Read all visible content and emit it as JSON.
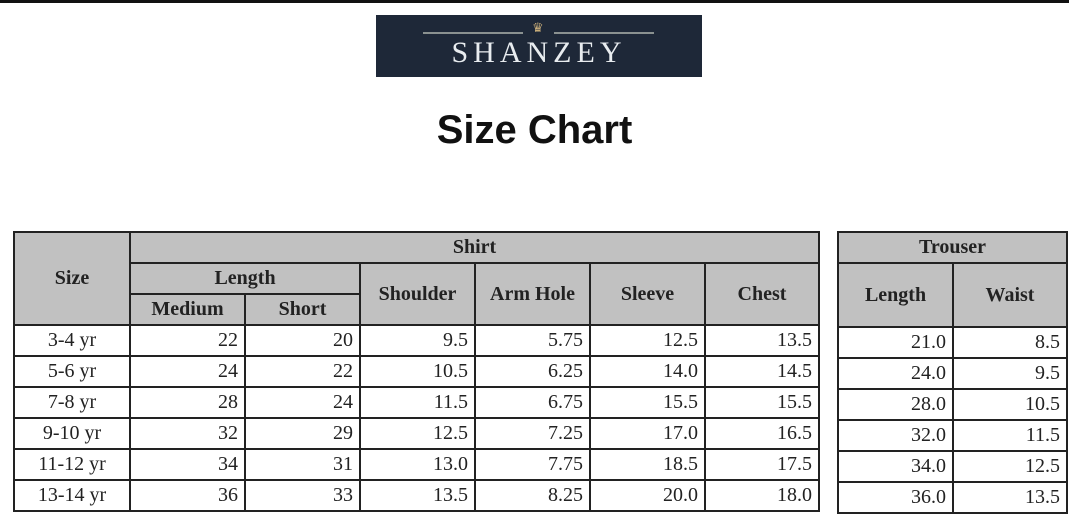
{
  "logo": {
    "text": "SHANZEY",
    "crown_icon": "crown-icon",
    "background": "#1e2838"
  },
  "title": "Size Chart",
  "shirt": {
    "group": "Shirt",
    "size_header": "Size",
    "length_header": "Length",
    "sub": [
      "Medium",
      "Short"
    ],
    "cols": [
      "Shoulder",
      "Arm Hole",
      "Sleeve",
      "Chest"
    ],
    "rows": [
      [
        "3-4 yr",
        "22",
        "20",
        "9.5",
        "5.75",
        "12.5",
        "13.5"
      ],
      [
        "5-6 yr",
        "24",
        "22",
        "10.5",
        "6.25",
        "14.0",
        "14.5"
      ],
      [
        "7-8 yr",
        "28",
        "24",
        "11.5",
        "6.75",
        "15.5",
        "15.5"
      ],
      [
        "9-10 yr",
        "32",
        "29",
        "12.5",
        "7.25",
        "17.0",
        "16.5"
      ],
      [
        "11-12 yr",
        "34",
        "31",
        "13.0",
        "7.75",
        "18.5",
        "17.5"
      ],
      [
        "13-14 yr",
        "36",
        "33",
        "13.5",
        "8.25",
        "20.0",
        "18.0"
      ]
    ]
  },
  "trouser": {
    "group": "Trouser",
    "cols": [
      "Length",
      "Waist"
    ],
    "rows": [
      [
        "21.0",
        "8.5"
      ],
      [
        "24.0",
        "9.5"
      ],
      [
        "28.0",
        "10.5"
      ],
      [
        "32.0",
        "11.5"
      ],
      [
        "34.0",
        "12.5"
      ],
      [
        "36.0",
        "13.5"
      ]
    ]
  }
}
